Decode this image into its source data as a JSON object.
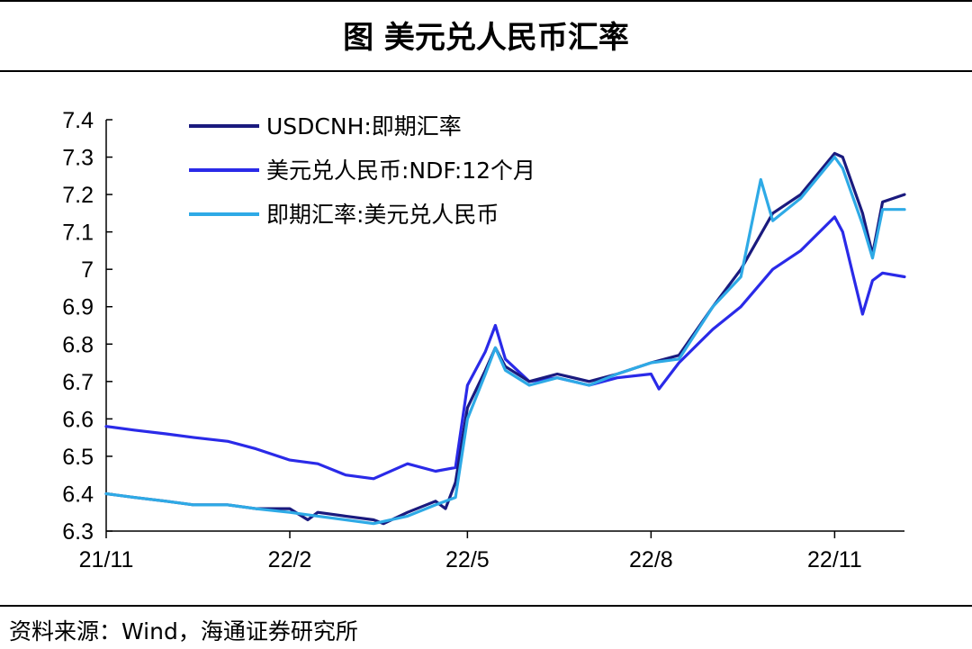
{
  "header": {
    "title": "图  美元兑人民币汇率"
  },
  "footer": {
    "source": "资料来源：Wind，海通证券研究所"
  },
  "chart_data": {
    "type": "line",
    "title": "图  美元兑人民币汇率",
    "xlabel": "",
    "ylabel": "",
    "x_tick_labels": [
      "21/11",
      "22/2",
      "22/5",
      "22/8",
      "22/11"
    ],
    "x_tick_dates": [
      "2021-11-01",
      "2022-02-01",
      "2022-05-01",
      "2022-08-01",
      "2022-11-01"
    ],
    "x_range": [
      "2021-11-01",
      "2022-12-06"
    ],
    "ylim": [
      6.3,
      7.4
    ],
    "y_ticks": [
      "6.3",
      "6.4",
      "6.5",
      "6.6",
      "6.7",
      "6.8",
      "6.9",
      "7",
      "7.1",
      "7.2",
      "7.3",
      "7.4"
    ],
    "grid": false,
    "legend_position": "top-left",
    "series": [
      {
        "name": "USDCNH:即期汇率",
        "color": "#1a1a7e",
        "points": [
          [
            "2021-11-01",
            6.4
          ],
          [
            "2021-11-15",
            6.39
          ],
          [
            "2021-12-01",
            6.38
          ],
          [
            "2021-12-15",
            6.37
          ],
          [
            "2022-01-01",
            6.37
          ],
          [
            "2022-01-15",
            6.36
          ],
          [
            "2022-02-01",
            6.36
          ],
          [
            "2022-02-10",
            6.33
          ],
          [
            "2022-02-15",
            6.35
          ],
          [
            "2022-03-01",
            6.34
          ],
          [
            "2022-03-15",
            6.33
          ],
          [
            "2022-03-20",
            6.32
          ],
          [
            "2022-04-01",
            6.35
          ],
          [
            "2022-04-15",
            6.38
          ],
          [
            "2022-04-20",
            6.36
          ],
          [
            "2022-04-25",
            6.43
          ],
          [
            "2022-05-01",
            6.63
          ],
          [
            "2022-05-10",
            6.73
          ],
          [
            "2022-05-15",
            6.79
          ],
          [
            "2022-05-20",
            6.74
          ],
          [
            "2022-06-01",
            6.7
          ],
          [
            "2022-06-15",
            6.72
          ],
          [
            "2022-07-01",
            6.7
          ],
          [
            "2022-07-15",
            6.72
          ],
          [
            "2022-08-01",
            6.75
          ],
          [
            "2022-08-15",
            6.77
          ],
          [
            "2022-09-01",
            6.9
          ],
          [
            "2022-09-15",
            7.0
          ],
          [
            "2022-10-01",
            7.15
          ],
          [
            "2022-10-15",
            7.2
          ],
          [
            "2022-11-01",
            7.31
          ],
          [
            "2022-11-05",
            7.3
          ],
          [
            "2022-11-15",
            7.15
          ],
          [
            "2022-11-20",
            7.04
          ],
          [
            "2022-11-25",
            7.18
          ],
          [
            "2022-12-06",
            7.2
          ]
        ]
      },
      {
        "name": "美元兑人民币:NDF:12个月",
        "color": "#2a2ae8",
        "points": [
          [
            "2021-11-01",
            6.58
          ],
          [
            "2021-11-15",
            6.57
          ],
          [
            "2021-12-01",
            6.56
          ],
          [
            "2021-12-15",
            6.55
          ],
          [
            "2022-01-01",
            6.54
          ],
          [
            "2022-01-15",
            6.52
          ],
          [
            "2022-02-01",
            6.49
          ],
          [
            "2022-02-15",
            6.48
          ],
          [
            "2022-03-01",
            6.45
          ],
          [
            "2022-03-15",
            6.44
          ],
          [
            "2022-04-01",
            6.48
          ],
          [
            "2022-04-15",
            6.46
          ],
          [
            "2022-04-25",
            6.47
          ],
          [
            "2022-05-01",
            6.69
          ],
          [
            "2022-05-10",
            6.78
          ],
          [
            "2022-05-15",
            6.85
          ],
          [
            "2022-05-20",
            6.76
          ],
          [
            "2022-06-01",
            6.7
          ],
          [
            "2022-06-15",
            6.71
          ],
          [
            "2022-07-01",
            6.69
          ],
          [
            "2022-07-15",
            6.71
          ],
          [
            "2022-08-01",
            6.72
          ],
          [
            "2022-08-05",
            6.68
          ],
          [
            "2022-08-15",
            6.75
          ],
          [
            "2022-09-01",
            6.84
          ],
          [
            "2022-09-15",
            6.9
          ],
          [
            "2022-10-01",
            7.0
          ],
          [
            "2022-10-15",
            7.05
          ],
          [
            "2022-11-01",
            7.14
          ],
          [
            "2022-11-05",
            7.1
          ],
          [
            "2022-11-10",
            6.99
          ],
          [
            "2022-11-15",
            6.88
          ],
          [
            "2022-11-20",
            6.97
          ],
          [
            "2022-11-25",
            6.99
          ],
          [
            "2022-12-06",
            6.98
          ]
        ]
      },
      {
        "name": "即期汇率:美元兑人民币",
        "color": "#2eaae6",
        "points": [
          [
            "2021-11-01",
            6.4
          ],
          [
            "2021-11-15",
            6.39
          ],
          [
            "2021-12-01",
            6.38
          ],
          [
            "2021-12-15",
            6.37
          ],
          [
            "2022-01-01",
            6.37
          ],
          [
            "2022-01-15",
            6.36
          ],
          [
            "2022-02-01",
            6.35
          ],
          [
            "2022-02-15",
            6.34
          ],
          [
            "2022-03-01",
            6.33
          ],
          [
            "2022-03-15",
            6.32
          ],
          [
            "2022-04-01",
            6.34
          ],
          [
            "2022-04-15",
            6.37
          ],
          [
            "2022-04-25",
            6.39
          ],
          [
            "2022-05-01",
            6.6
          ],
          [
            "2022-05-10",
            6.72
          ],
          [
            "2022-05-15",
            6.79
          ],
          [
            "2022-05-20",
            6.73
          ],
          [
            "2022-06-01",
            6.69
          ],
          [
            "2022-06-15",
            6.71
          ],
          [
            "2022-07-01",
            6.69
          ],
          [
            "2022-07-15",
            6.72
          ],
          [
            "2022-08-01",
            6.75
          ],
          [
            "2022-08-15",
            6.76
          ],
          [
            "2022-09-01",
            6.9
          ],
          [
            "2022-09-15",
            6.98
          ],
          [
            "2022-09-25",
            7.24
          ],
          [
            "2022-10-01",
            7.13
          ],
          [
            "2022-10-15",
            7.19
          ],
          [
            "2022-11-01",
            7.3
          ],
          [
            "2022-11-05",
            7.27
          ],
          [
            "2022-11-15",
            7.12
          ],
          [
            "2022-11-20",
            7.03
          ],
          [
            "2022-11-25",
            7.16
          ],
          [
            "2022-12-06",
            7.16
          ]
        ]
      }
    ]
  }
}
